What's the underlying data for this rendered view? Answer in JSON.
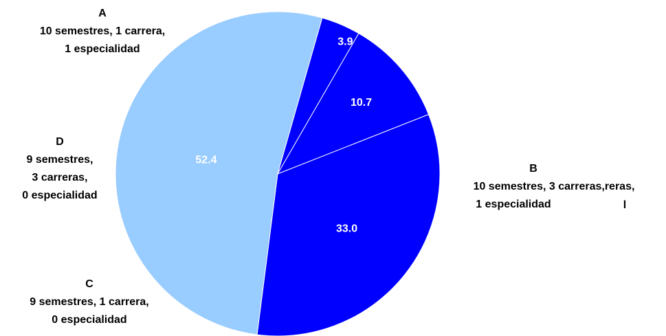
{
  "chart_data": {
    "type": "pie",
    "title": "",
    "slices": [
      {
        "name": "A",
        "value": 33.0,
        "label": "33.0",
        "description": [
          "10 semestres, 1 carrera,",
          "1 especialidad"
        ],
        "color": "#0000FF"
      },
      {
        "name": "B",
        "value": 52.4,
        "label": "52.4",
        "description": [
          "10 semestres, 3 carreras,reras,",
          "1 especialidad"
        ],
        "color": "#99CCFF"
      },
      {
        "name": "C",
        "value": 3.9,
        "label": "3.9",
        "description": [
          "9 semestres, 1 carrera,",
          "0 especialidad"
        ],
        "color": "#0000FF"
      },
      {
        "name": "D",
        "value": 10.7,
        "label": "10.7",
        "description": [
          "9 semestres,",
          "3 carreras,",
          "0 especialidad"
        ],
        "color": "#0000FF"
      }
    ],
    "order": [
      "A",
      "B",
      "C",
      "D"
    ],
    "stray_mark": "l"
  },
  "colors": {
    "dark_slice": "#0000FF",
    "light_slice": "#99CCFF",
    "slice_border": "#FFFFFF",
    "value_text": "#FFFFFF",
    "label_text": "#000000"
  }
}
